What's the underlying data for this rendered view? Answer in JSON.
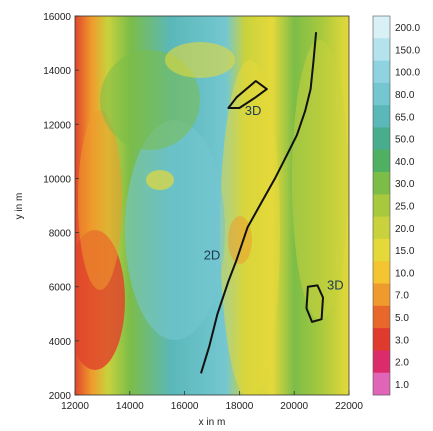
{
  "chart_data": {
    "type": "heatmap",
    "title": "",
    "xlabel": "x in m",
    "ylabel": "y in m",
    "xlim": [
      12000,
      22000
    ],
    "ylim": [
      2000,
      16000
    ],
    "x_ticks": [
      12000,
      14000,
      16000,
      18000,
      20000,
      22000
    ],
    "y_ticks": [
      2000,
      4000,
      6000,
      8000,
      10000,
      12000,
      14000,
      16000
    ],
    "x_tick_labels": [
      "12000",
      "14000",
      "16000",
      "18000",
      "20000",
      "22000"
    ],
    "y_tick_labels": [
      "2000",
      "4000",
      "6000",
      "8000",
      "10000",
      "12000",
      "14000",
      "16000"
    ],
    "colorbar": {
      "labels": [
        "200.0",
        "150.0",
        "100.0",
        "80.0",
        "65.0",
        "50.0",
        "40.0",
        "30.0",
        "25.0",
        "20.0",
        "15.0",
        "10.0",
        "7.0",
        "5.0",
        "3.0",
        "2.0",
        "1.0"
      ],
      "colors": [
        "#d8f0f6",
        "#b4e3ee",
        "#8fd3e0",
        "#74c7d1",
        "#5ab8b9",
        "#48ad8c",
        "#4fb062",
        "#7cbd48",
        "#a8c93d",
        "#c9d23d",
        "#e5d93a",
        "#f4c531",
        "#ef9a2c",
        "#e8672a",
        "#e0392e",
        "#dc2b6a",
        "#e065b8"
      ]
    },
    "annotations": [
      {
        "text": "3D",
        "x": 18500,
        "y": 12350
      },
      {
        "text": "2D",
        "x": 17000,
        "y": 7000
      },
      {
        "text": "3D",
        "x": 21500,
        "y": 5900
      }
    ],
    "contours": [
      {
        "name": "main-fault",
        "points": [
          [
            16600,
            2800
          ],
          [
            16900,
            3800
          ],
          [
            17200,
            5000
          ],
          [
            17600,
            6200
          ],
          [
            17900,
            7000
          ],
          [
            18300,
            8200
          ],
          [
            18800,
            9100
          ],
          [
            19300,
            10000
          ],
          [
            19700,
            10800
          ],
          [
            20100,
            11600
          ],
          [
            20400,
            12500
          ],
          [
            20600,
            13300
          ],
          [
            20700,
            14300
          ],
          [
            20800,
            15400
          ]
        ]
      },
      {
        "name": "east-3d-zone",
        "points": [
          [
            20500,
            6000
          ],
          [
            20850,
            6050
          ],
          [
            21050,
            5600
          ],
          [
            21000,
            4800
          ],
          [
            20650,
            4700
          ],
          [
            20450,
            5200
          ]
        ]
      },
      {
        "name": "north-3d-zone",
        "points": [
          [
            17600,
            12600
          ],
          [
            17900,
            13000
          ],
          [
            18600,
            13600
          ],
          [
            19000,
            13300
          ],
          [
            18600,
            13000
          ],
          [
            18000,
            12600
          ]
        ]
      }
    ]
  }
}
